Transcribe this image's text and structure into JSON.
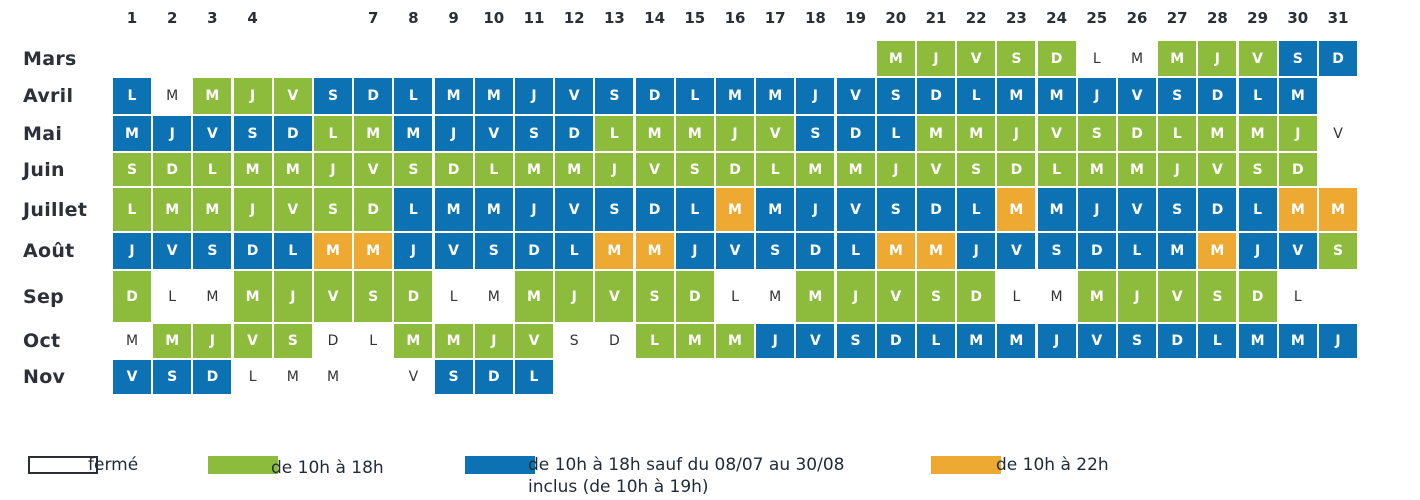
{
  "day_numbers": [
    "1",
    "2",
    "3",
    "4",
    "",
    "",
    "7",
    "8",
    "9",
    "10",
    "11",
    "12",
    "13",
    "14",
    "15",
    "16",
    "17",
    "18",
    "19",
    "20",
    "21",
    "22",
    "23",
    "24",
    "25",
    "26",
    "27",
    "28",
    "29",
    "30",
    "31"
  ],
  "colors": {
    "closed": "#ffffff",
    "green": "#8dbb3b",
    "blue": "#0d72b4",
    "orange": "#eea932"
  },
  "months": [
    {
      "name": "Mars",
      "start": 20,
      "letters": "MJVSDLMMJVSD",
      "colors": "ggggdwwgggbb"
    },
    {
      "name": "Avril",
      "start": 1,
      "letters": "LMMJVSDLMMJVSDLMMJVSDLMMJVSDLM",
      "colors": "bwgggbbbbbbbbbbbbbbbbbbbbbbbbb"
    },
    {
      "name": "Mai",
      "start": 1,
      "letters": "MJVSDLMMJVSDLMMJVSDLMMJVSDLMMJV",
      "colors": "bbbbbggbbbbbgggggbbbgggggggggg"
    },
    {
      "name": "Juin",
      "start": 1,
      "letters": "SDLMMJVSDLMMJVSDLMMJVSDLMMJVSD",
      "colors": "gggggggggggggggggggggggggggggg"
    },
    {
      "name": "Juillet",
      "start": 1,
      "letters": "LMMJVSDLMMJVSDLMMJVSDLMMJVSDLMM",
      "colors": "gggggggbbbbbbbbobbbbbbobbbbbboo"
    },
    {
      "name": "Août",
      "start": 1,
      "letters": "JVSDLMMJVSDLMMJVSDLMMJVSDLMMJVS",
      "colors": "bbbbboobbbbboobbbbboobbbbbbobbg"
    },
    {
      "name": "Sep",
      "start": 1,
      "letters": "DLMMJVSDLMMJVSDLMMJVSDLMMJVSDL",
      "colors": "gwwgggggwwgggggwwgggggwwgggggw"
    },
    {
      "name": "Oct",
      "start": 1,
      "letters": "MMJVSDLMMJVSDLMMJVSDLMMJVSDLMMJ",
      "colors": "wggggwwggggwwgggbbbbbbbbbbbbbbb"
    },
    {
      "name": "Nov",
      "start": 1,
      "letters": "VSDLMM_VSDL",
      "colors": "bbbwww_wbbb"
    }
  ],
  "legend": [
    {
      "label": "fermé",
      "color_key": "closed"
    },
    {
      "label": "de 10h à 18h",
      "color_key": "green"
    },
    {
      "label": "de 10h à 18h sauf du 08/07 au 30/08",
      "label2": "inclus (de 10h à 19h)",
      "color_key": "blue"
    },
    {
      "label": "de 10h à 22h",
      "color_key": "orange"
    }
  ]
}
